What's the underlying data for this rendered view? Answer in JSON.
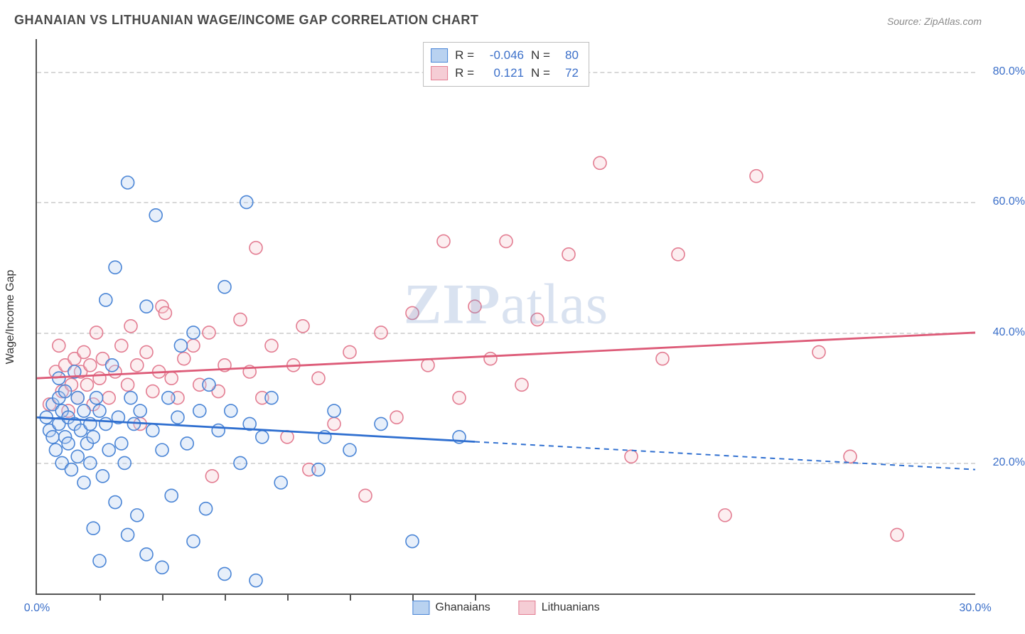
{
  "title": "GHANAIAN VS LITHUANIAN WAGE/INCOME GAP CORRELATION CHART",
  "source_label": "Source: ZipAtlas.com",
  "y_axis_label": "Wage/Income Gap",
  "watermark": "ZIPatlas",
  "chart": {
    "type": "scatter",
    "xlim": [
      0,
      30
    ],
    "ylim": [
      0,
      85
    ],
    "x_ticks_label_left": "0.0%",
    "x_ticks_label_right": "30.0%",
    "x_minor_ticks": [
      2,
      4,
      6,
      8,
      10,
      12,
      14
    ],
    "y_grid": [
      {
        "v": 20,
        "label": "20.0%"
      },
      {
        "v": 40,
        "label": "40.0%"
      },
      {
        "v": 60,
        "label": "60.0%"
      },
      {
        "v": 80,
        "label": "80.0%"
      }
    ],
    "background_color": "#ffffff",
    "grid_color": "#d8d8d8",
    "axis_color": "#555555",
    "tick_label_color": "#3b6fc9",
    "marker_radius": 9,
    "marker_stroke_width": 1.6,
    "marker_fill_opacity": 0.35,
    "series": {
      "ghanaians": {
        "label": "Ghanaians",
        "color_fill": "#b9d2f0",
        "color_stroke": "#4a85d6",
        "trend": {
          "stroke": "#2f6fd0",
          "width": 2.8,
          "y_at_x0": 27,
          "y_at_x30": 19,
          "solid_until_x": 14
        },
        "points": [
          [
            0.3,
            27
          ],
          [
            0.4,
            25
          ],
          [
            0.5,
            29
          ],
          [
            0.5,
            24
          ],
          [
            0.6,
            22
          ],
          [
            0.7,
            26
          ],
          [
            0.7,
            30
          ],
          [
            0.7,
            33
          ],
          [
            0.8,
            28
          ],
          [
            0.8,
            20
          ],
          [
            0.9,
            24
          ],
          [
            0.9,
            31
          ],
          [
            1.0,
            27
          ],
          [
            1.0,
            23
          ],
          [
            1.1,
            19
          ],
          [
            1.2,
            26
          ],
          [
            1.2,
            34
          ],
          [
            1.3,
            21
          ],
          [
            1.3,
            30
          ],
          [
            1.4,
            25
          ],
          [
            1.5,
            28
          ],
          [
            1.5,
            17
          ],
          [
            1.6,
            23
          ],
          [
            1.7,
            20
          ],
          [
            1.7,
            26
          ],
          [
            1.8,
            24
          ],
          [
            1.8,
            10
          ],
          [
            1.9,
            30
          ],
          [
            2.0,
            28
          ],
          [
            2.0,
            5
          ],
          [
            2.1,
            18
          ],
          [
            2.2,
            45
          ],
          [
            2.2,
            26
          ],
          [
            2.3,
            22
          ],
          [
            2.4,
            35
          ],
          [
            2.5,
            50
          ],
          [
            2.5,
            14
          ],
          [
            2.6,
            27
          ],
          [
            2.7,
            23
          ],
          [
            2.8,
            20
          ],
          [
            2.9,
            63
          ],
          [
            2.9,
            9
          ],
          [
            3.0,
            30
          ],
          [
            3.1,
            26
          ],
          [
            3.2,
            12
          ],
          [
            3.3,
            28
          ],
          [
            3.5,
            44
          ],
          [
            3.5,
            6
          ],
          [
            3.7,
            25
          ],
          [
            3.8,
            58
          ],
          [
            4.0,
            22
          ],
          [
            4.0,
            4
          ],
          [
            4.2,
            30
          ],
          [
            4.3,
            15
          ],
          [
            4.5,
            27
          ],
          [
            4.6,
            38
          ],
          [
            4.8,
            23
          ],
          [
            5.0,
            40
          ],
          [
            5.0,
            8
          ],
          [
            5.2,
            28
          ],
          [
            5.4,
            13
          ],
          [
            5.5,
            32
          ],
          [
            5.8,
            25
          ],
          [
            6.0,
            47
          ],
          [
            6.0,
            3
          ],
          [
            6.2,
            28
          ],
          [
            6.5,
            20
          ],
          [
            6.7,
            60
          ],
          [
            6.8,
            26
          ],
          [
            7.0,
            2
          ],
          [
            7.2,
            24
          ],
          [
            7.5,
            30
          ],
          [
            7.8,
            17
          ],
          [
            9.0,
            19
          ],
          [
            9.2,
            24
          ],
          [
            9.5,
            28
          ],
          [
            10.0,
            22
          ],
          [
            11.0,
            26
          ],
          [
            12.0,
            8
          ],
          [
            13.5,
            24
          ]
        ]
      },
      "lithuanians": {
        "label": "Lithuanians",
        "color_fill": "#f5cdd5",
        "color_stroke": "#e37d92",
        "trend": {
          "stroke": "#dd5b78",
          "width": 2.8,
          "y_at_x0": 33,
          "y_at_x30": 40,
          "solid_until_x": 30
        },
        "points": [
          [
            0.4,
            29
          ],
          [
            0.6,
            34
          ],
          [
            0.7,
            38
          ],
          [
            0.8,
            31
          ],
          [
            0.9,
            35
          ],
          [
            1.0,
            28
          ],
          [
            1.1,
            32
          ],
          [
            1.2,
            36
          ],
          [
            1.3,
            30
          ],
          [
            1.4,
            34
          ],
          [
            1.5,
            37
          ],
          [
            1.6,
            32
          ],
          [
            1.7,
            35
          ],
          [
            1.8,
            29
          ],
          [
            1.9,
            40
          ],
          [
            2.0,
            33
          ],
          [
            2.1,
            36
          ],
          [
            2.3,
            30
          ],
          [
            2.5,
            34
          ],
          [
            2.7,
            38
          ],
          [
            2.9,
            32
          ],
          [
            3.0,
            41
          ],
          [
            3.2,
            35
          ],
          [
            3.3,
            26
          ],
          [
            3.5,
            37
          ],
          [
            3.7,
            31
          ],
          [
            3.9,
            34
          ],
          [
            4.0,
            44
          ],
          [
            4.1,
            43
          ],
          [
            4.3,
            33
          ],
          [
            4.5,
            30
          ],
          [
            4.7,
            36
          ],
          [
            5.0,
            38
          ],
          [
            5.2,
            32
          ],
          [
            5.5,
            40
          ],
          [
            5.6,
            18
          ],
          [
            5.8,
            31
          ],
          [
            6.0,
            35
          ],
          [
            6.5,
            42
          ],
          [
            6.8,
            34
          ],
          [
            7.0,
            53
          ],
          [
            7.2,
            30
          ],
          [
            7.5,
            38
          ],
          [
            8.0,
            24
          ],
          [
            8.2,
            35
          ],
          [
            8.5,
            41
          ],
          [
            8.7,
            19
          ],
          [
            9.0,
            33
          ],
          [
            9.5,
            26
          ],
          [
            10.0,
            37
          ],
          [
            10.5,
            15
          ],
          [
            11.0,
            40
          ],
          [
            11.5,
            27
          ],
          [
            12.0,
            43
          ],
          [
            12.5,
            35
          ],
          [
            13.0,
            54
          ],
          [
            13.5,
            30
          ],
          [
            14.0,
            44
          ],
          [
            14.5,
            36
          ],
          [
            15.0,
            54
          ],
          [
            15.5,
            32
          ],
          [
            16.0,
            42
          ],
          [
            17.0,
            52
          ],
          [
            18.0,
            66
          ],
          [
            19.0,
            21
          ],
          [
            20.0,
            36
          ],
          [
            20.5,
            52
          ],
          [
            22.0,
            12
          ],
          [
            23.0,
            64
          ],
          [
            25.0,
            37
          ],
          [
            26.0,
            21
          ],
          [
            27.5,
            9
          ]
        ]
      }
    }
  },
  "stats": {
    "rows": [
      {
        "swatch": "blue",
        "r": "-0.046",
        "n": "80"
      },
      {
        "swatch": "pink",
        "r": "0.121",
        "n": "72"
      }
    ],
    "r_label": "R =",
    "n_label": "N ="
  },
  "legend": {
    "items": [
      {
        "swatch": "blue",
        "label": "Ghanaians"
      },
      {
        "swatch": "pink",
        "label": "Lithuanians"
      }
    ]
  }
}
